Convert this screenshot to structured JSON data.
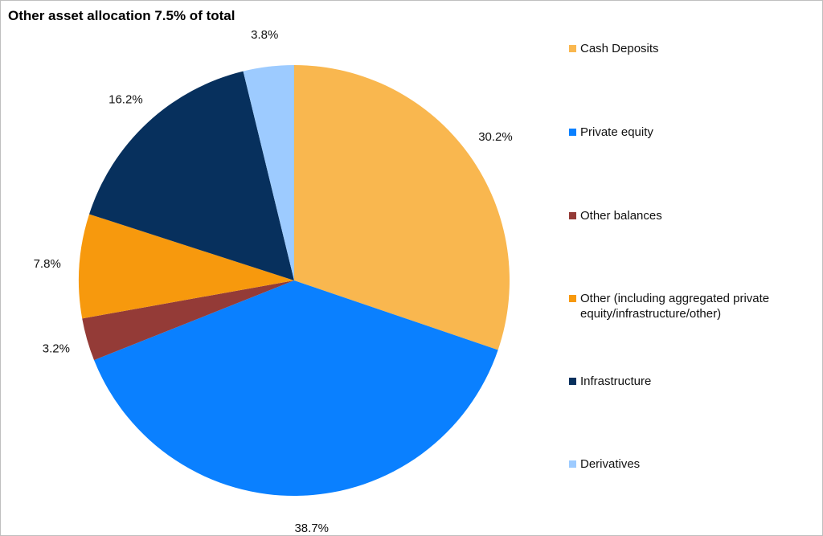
{
  "chart_data": {
    "type": "pie",
    "title": "Other asset allocation 7.5% of total",
    "start_angle": "top, clockwise",
    "legend_position": "right",
    "slices": [
      {
        "label": "Cash Deposits",
        "value": 30.2,
        "display": "30.2%",
        "color": "#F9B74F"
      },
      {
        "label": "Private equity",
        "value": 38.7,
        "display": "38.7%",
        "color": "#0A80FF"
      },
      {
        "label": "Other balances",
        "value": 3.2,
        "display": "3.2%",
        "color": "#943B37"
      },
      {
        "label": "Other (including aggregated private equity/infrastructure/other)",
        "value": 7.8,
        "display": "7.8%",
        "color": "#F7990D"
      },
      {
        "label": "Infrastructure",
        "value": 16.2,
        "display": "16.2%",
        "color": "#07305D"
      },
      {
        "label": "Derivatives",
        "value": 3.8,
        "display": "3.8%",
        "color": "#9DCBFF"
      }
    ]
  }
}
